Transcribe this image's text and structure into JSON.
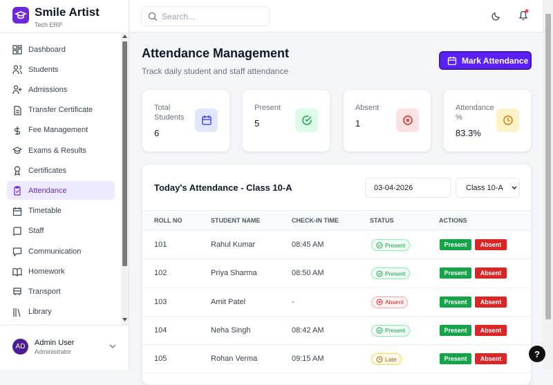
{
  "brand": {
    "name": "Smile Artist",
    "subtitle": "Tech ERP"
  },
  "nav": [
    "Dashboard",
    "Students",
    "Admissions",
    "Transfer Certificate",
    "Fee Management",
    "Exams & Results",
    "Certificates",
    "Attendance",
    "Timetable",
    "Staff",
    "Communication",
    "Homework",
    "Transport",
    "Library"
  ],
  "user": {
    "initials": "AD",
    "name": "Admin User",
    "role": "Administrator"
  },
  "search": {
    "placeholder": "Search..."
  },
  "header": {
    "title": "Attendance Management",
    "subtitle": "Track daily student and staff attendance",
    "button": "Mark Attendance"
  },
  "stats": [
    {
      "label": "Total Students",
      "value": "6"
    },
    {
      "label": "Present",
      "value": "5"
    },
    {
      "label": "Absent",
      "value": "1"
    },
    {
      "label": "Attendance %",
      "value": "83.3%"
    }
  ],
  "table": {
    "title": "Today's Attendance - Class 10-A",
    "date": "03-04-2026",
    "class": "Class 10-A",
    "columns": [
      "ROLL NO",
      "STUDENT NAME",
      "CHECK-IN TIME",
      "STATUS",
      "ACTIONS"
    ],
    "rows": [
      [
        "101",
        "Rahul Kumar",
        "08:45 AM",
        "Present"
      ],
      [
        "102",
        "Priya Sharma",
        "08:50 AM",
        "Present"
      ],
      [
        "103",
        "Amit Patel",
        "-",
        "Absent"
      ],
      [
        "104",
        "Neha Singh",
        "08:42 AM",
        "Present"
      ],
      [
        "105",
        "Rohan Verma",
        "09:15 AM",
        "Late"
      ]
    ],
    "actions": [
      "Present",
      "Absent"
    ]
  },
  "help": "?"
}
